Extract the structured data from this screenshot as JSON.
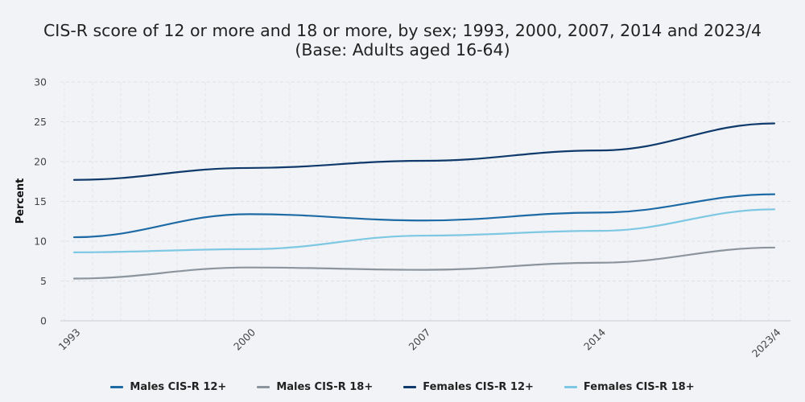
{
  "chart_data": {
    "type": "line",
    "title": "CIS-R score of 12 or more and 18 or more, by sex; 1993, 2000, 2007, 2014 and 2023/4",
    "subtitle": "(Base: Adults aged 16-64)",
    "xlabel": "",
    "ylabel": "Percent",
    "categories": [
      "1993",
      "2000",
      "2007",
      "2014",
      "2023/4"
    ],
    "ylim": [
      0,
      30
    ],
    "yticks": [
      0,
      5,
      10,
      15,
      20,
      25,
      30
    ],
    "grid": true,
    "legend_position": "bottom",
    "series": [
      {
        "name": "Males CIS-R 12+",
        "color": "#1d6aa5",
        "values": [
          10.5,
          13.4,
          12.6,
          13.6,
          15.9
        ]
      },
      {
        "name": "Males CIS-R 18+",
        "color": "#8c959e",
        "values": [
          5.3,
          6.7,
          6.4,
          7.3,
          9.2
        ]
      },
      {
        "name": "Females CIS-R 12+",
        "color": "#0f3a6b",
        "values": [
          17.7,
          19.2,
          20.1,
          21.4,
          24.8
        ]
      },
      {
        "name": "Females CIS-R 18+",
        "color": "#7ec8e3",
        "values": [
          8.6,
          9.0,
          10.7,
          11.3,
          14.0
        ]
      }
    ]
  }
}
